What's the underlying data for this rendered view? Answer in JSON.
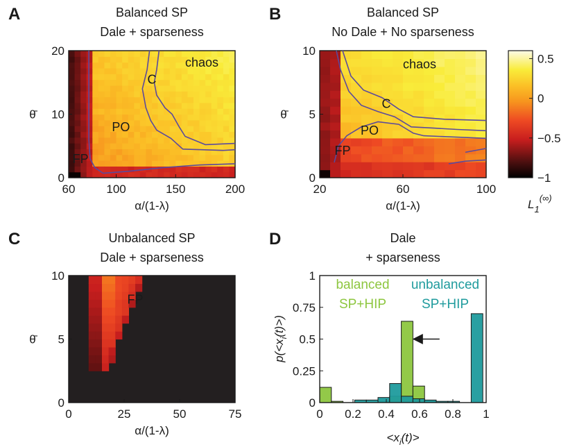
{
  "chart_data": [
    {
      "panel": "A",
      "type": "heatmap",
      "title": [
        "Balanced SP",
        "Dale + sparseness"
      ],
      "xlabel": "α/(1-λ)",
      "ylabel": "θ̄",
      "xlim": [
        60,
        200
      ],
      "ylim": [
        0,
        20
      ],
      "xticks": [
        "60",
        "100",
        "150",
        "200"
      ],
      "xtick_values": [
        60,
        100,
        150,
        200
      ],
      "yticks": [
        "0",
        "10",
        "20"
      ],
      "ytick_values": [
        0,
        10,
        20
      ],
      "regions": [
        {
          "label": "chaos",
          "x": 172,
          "y": 17.5
        },
        {
          "label": "C",
          "x": 130,
          "y": 14.8
        },
        {
          "label": "PO",
          "x": 104,
          "y": 7.3
        },
        {
          "label": "FP",
          "x": 70,
          "y": 2.3
        }
      ],
      "boundary_lines": [
        [
          [
            89,
            0.7
          ],
          [
            82,
            1.6
          ],
          [
            78,
            3.0
          ],
          [
            77,
            6.0
          ],
          [
            77,
            20
          ]
        ],
        [
          [
            89,
            0.7
          ],
          [
            110,
            1.0
          ],
          [
            140,
            1.6
          ],
          [
            170,
            2.0
          ],
          [
            200,
            2.2
          ]
        ],
        [
          [
            128,
            20
          ],
          [
            126,
            17
          ],
          [
            122,
            14
          ],
          [
            125,
            11
          ],
          [
            129,
            9
          ],
          [
            134,
            7.5
          ],
          [
            146,
            6.2
          ],
          [
            156,
            4.5
          ],
          [
            190,
            4.3
          ],
          [
            200,
            4.4
          ]
        ],
        [
          [
            136,
            20
          ],
          [
            134,
            17
          ],
          [
            132,
            15
          ],
          [
            134,
            13
          ],
          [
            141,
            11
          ],
          [
            147,
            10
          ],
          [
            153,
            8
          ],
          [
            158,
            6.5
          ],
          [
            175,
            5.2
          ],
          [
            200,
            5.4
          ]
        ]
      ]
    },
    {
      "panel": "B",
      "type": "heatmap",
      "title": [
        "Balanced SP",
        "No Dale + No sparseness"
      ],
      "xlabel": "α/(1-λ)",
      "ylabel": "θ̄",
      "xlim": [
        20,
        100
      ],
      "ylim": [
        0,
        10
      ],
      "xticks": [
        "20",
        "60",
        "100"
      ],
      "xtick_values": [
        20,
        60,
        100
      ],
      "yticks": [
        "0",
        "5",
        "10"
      ],
      "ytick_values": [
        0,
        5,
        10
      ],
      "regions": [
        {
          "label": "chaos",
          "x": 68,
          "y": 8.6
        },
        {
          "label": "C",
          "x": 52,
          "y": 5.5
        },
        {
          "label": "PO",
          "x": 44,
          "y": 3.4
        },
        {
          "label": "FP",
          "x": 31,
          "y": 1.8
        }
      ],
      "colorbar": {
        "ticks": [
          "0.5",
          "0",
          "−0.5",
          "−1"
        ],
        "tick_values": [
          0.5,
          0,
          -0.5,
          -1
        ],
        "range": [
          -1,
          0.6
        ],
        "label": "L",
        "label_sub": "1",
        "label_sup": "(∞)"
      },
      "boundary_lines": [
        [
          [
            27,
            1.2
          ],
          [
            29,
            2.5
          ],
          [
            33,
            3.3
          ],
          [
            40,
            4.0
          ],
          [
            48,
            4.4
          ],
          [
            58,
            4.2
          ],
          [
            65,
            3.5
          ],
          [
            70,
            3.3
          ],
          [
            100,
            3.1
          ]
        ],
        [
          [
            28,
            10
          ],
          [
            30,
            8.5
          ],
          [
            34,
            6.8
          ],
          [
            40,
            5.7
          ],
          [
            48,
            5.2
          ],
          [
            56,
            4.8
          ],
          [
            64,
            4.0
          ],
          [
            75,
            3.9
          ],
          [
            86,
            3.8
          ],
          [
            100,
            3.7
          ]
        ],
        [
          [
            31,
            10
          ],
          [
            35,
            8.0
          ],
          [
            41,
            6.9
          ],
          [
            50,
            6.3
          ],
          [
            58,
            5.4
          ],
          [
            65,
            4.8
          ],
          [
            80,
            4.6
          ],
          [
            100,
            4.5
          ]
        ],
        [
          [
            82,
            1.1
          ],
          [
            90,
            1.3
          ],
          [
            100,
            1.4
          ]
        ],
        [
          [
            90,
            2.0
          ],
          [
            100,
            2.3
          ]
        ]
      ]
    },
    {
      "panel": "C",
      "type": "heatmap",
      "title": [
        "Unbalanced SP",
        "Dale + sparseness"
      ],
      "xlabel": "α/(1-λ)",
      "ylabel": "θ̄",
      "xlim": [
        0,
        75
      ],
      "ylim": [
        0,
        10
      ],
      "xticks": [
        "0",
        "25",
        "50",
        "75"
      ],
      "xtick_values": [
        0,
        25,
        50,
        75
      ],
      "yticks": [
        "0",
        "5",
        "10"
      ],
      "ytick_values": [
        0,
        5,
        10
      ],
      "regions": [
        {
          "label": "FP",
          "x": 30,
          "y": 7.8
        }
      ]
    },
    {
      "panel": "D",
      "type": "bar",
      "title": [
        "Dale",
        "+ sparseness"
      ],
      "xlabel": "<x_i(t)>",
      "xlabel_main": "<x",
      "xlabel_sub": "i",
      "xlabel_tail": "(t)>",
      "ylabel": "p(<x_i(t)>)",
      "ylabel_main": "p(<x",
      "ylabel_sub": "i",
      "ylabel_tail": "(t)>)",
      "xlim": [
        0,
        1
      ],
      "ylim": [
        0,
        1
      ],
      "xticks": [
        "0",
        "0.2",
        "0.4",
        "0.6",
        "0.8",
        "1"
      ],
      "xtick_values": [
        0,
        0.2,
        0.4,
        0.6,
        0.8,
        1
      ],
      "yticks": [
        "0",
        "0.25",
        "0.5",
        "0.75",
        "1"
      ],
      "ytick_values": [
        0,
        0.25,
        0.5,
        0.75,
        1
      ],
      "bin_width": 0.07,
      "series": [
        {
          "name": "balanced SP+HIP",
          "legend": [
            "balanced",
            "SP+HIP"
          ],
          "color": "#8dc63f",
          "bins": [
            0.035,
            0.105,
            0.175,
            0.245,
            0.315,
            0.385,
            0.455,
            0.525,
            0.595,
            0.665,
            0.735,
            0.805,
            0.875,
            0.945
          ],
          "values": [
            0.12,
            0.01,
            0.0,
            0.0,
            0.0,
            0.01,
            0.05,
            0.64,
            0.13,
            0.01,
            0.0,
            0.0,
            0.0,
            0.0
          ]
        },
        {
          "name": "unbalanced SP+HIP",
          "legend": [
            "unbalanced",
            "SP+HIP"
          ],
          "color": "#1f9b9d",
          "bins": [
            0.035,
            0.105,
            0.175,
            0.245,
            0.315,
            0.385,
            0.455,
            0.525,
            0.595,
            0.665,
            0.735,
            0.805,
            0.875,
            0.945
          ],
          "values": [
            0.0,
            0.0,
            0.0,
            0.02,
            0.02,
            0.04,
            0.15,
            0.05,
            0.03,
            0.02,
            0.01,
            0.01,
            0.0,
            0.7
          ]
        }
      ],
      "arrow": {
        "from": [
          0.72,
          0.5
        ],
        "to": [
          0.57,
          0.5
        ]
      }
    }
  ],
  "colors": {
    "contour": "#5b4a9c",
    "dark": "#231f20"
  }
}
